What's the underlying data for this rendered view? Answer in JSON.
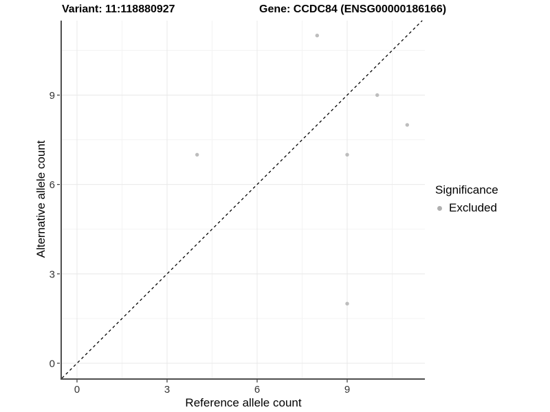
{
  "chart_data": {
    "type": "scatter",
    "title_left": "Variant: 11:118880927",
    "title_right": "Gene: CCDC84 (ENSG00000186166)",
    "xlabel": "Reference allele count",
    "ylabel": "Alternative allele count",
    "xlim": [
      -0.504,
      11.588
    ],
    "ylim": [
      -0.507,
      11.5
    ],
    "x_ticks": [
      0,
      3,
      6,
      9
    ],
    "y_ticks": [
      0,
      3,
      6,
      9
    ],
    "x_tick_labels": [
      "0",
      "3",
      "6",
      "9"
    ],
    "y_tick_labels": [
      "0",
      "3",
      "6",
      "9"
    ],
    "x_minor_gridlines": [
      1.5,
      4.5,
      7.5,
      10.5
    ],
    "y_minor_gridlines": [
      1.5,
      4.5,
      7.5,
      10.5
    ],
    "grid": true,
    "identity_line": [
      -0.5,
      11.5
    ],
    "series": [
      {
        "name": "Excluded",
        "color": "#bdbdbd",
        "points": [
          [
            4,
            7
          ],
          [
            8,
            11
          ],
          [
            9,
            2
          ],
          [
            9,
            7
          ],
          [
            10,
            9
          ],
          [
            11,
            8
          ]
        ]
      }
    ],
    "legend": {
      "title": "Significance",
      "position": "right",
      "items": [
        {
          "label": "Excluded",
          "color": "#b0b0b0"
        }
      ]
    },
    "colors": {
      "grid_major": "#e8e8e8",
      "grid_minor": "#f3f3f3",
      "axis_line": "#4d4d4d",
      "tick": "#333333",
      "point": "#bdbdbd",
      "dashed_line": "#000000"
    }
  }
}
